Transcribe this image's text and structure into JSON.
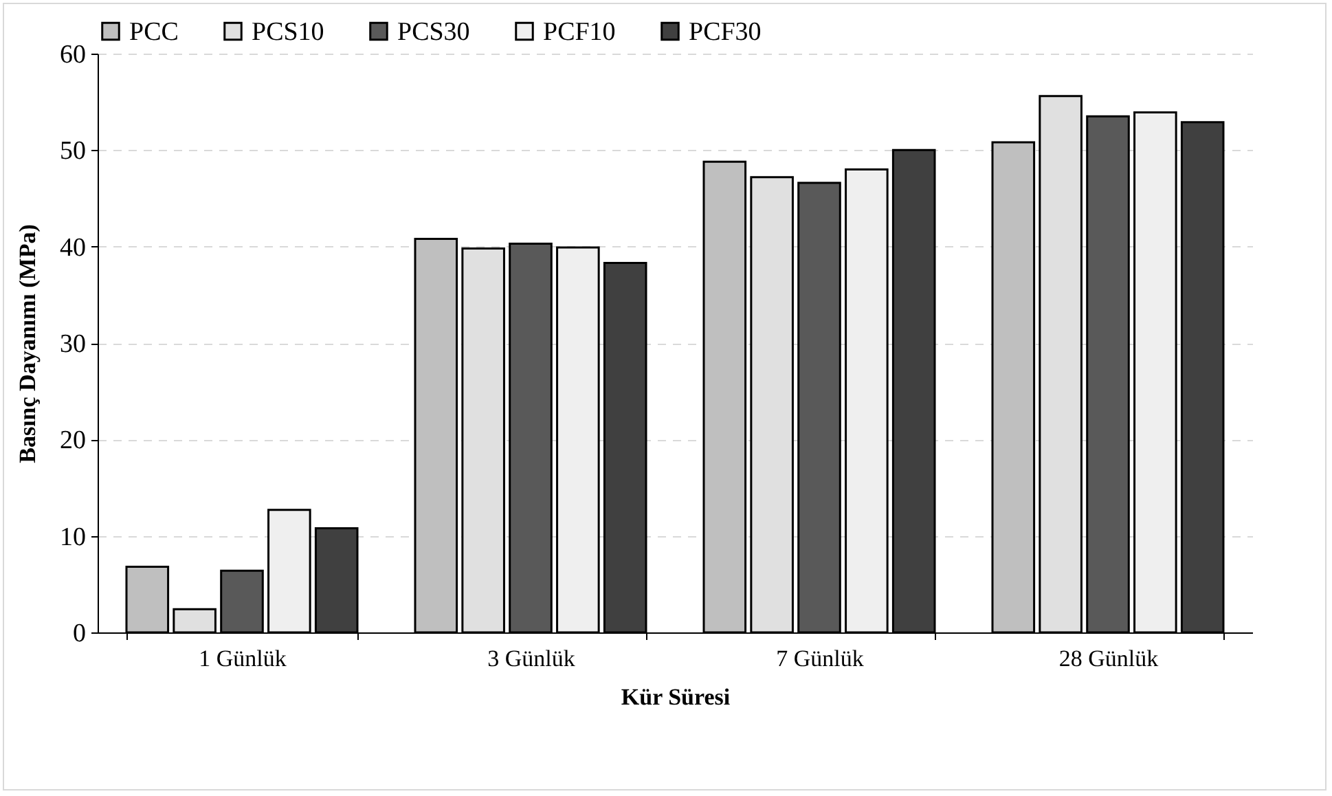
{
  "chart_data": {
    "type": "bar",
    "xlabel": "Kür Süresi",
    "ylabel": "Basınç Dayanımı (MPa)",
    "categories": [
      "1 Günlük",
      "3 Günlük",
      "7 Günlük",
      "28 Günlük"
    ],
    "series": [
      {
        "name": "PCC",
        "color": "#bfbfbf",
        "values": [
          6.8,
          40.8,
          48.8,
          50.8
        ]
      },
      {
        "name": "PCS10",
        "color": "#e0e0e0",
        "values": [
          2.4,
          39.8,
          47.2,
          55.6
        ]
      },
      {
        "name": "PCS30",
        "color": "#595959",
        "values": [
          6.4,
          40.3,
          46.6,
          53.5
        ]
      },
      {
        "name": "PCF10",
        "color": "#efefef",
        "values": [
          12.7,
          39.9,
          48.0,
          53.9
        ]
      },
      {
        "name": "PCF30",
        "color": "#404040",
        "values": [
          10.8,
          38.3,
          50.0,
          52.9
        ]
      }
    ],
    "ylim": [
      0,
      60
    ],
    "yticks": [
      0,
      10,
      20,
      30,
      40,
      50,
      60
    ],
    "grid": "y",
    "legend": "top"
  }
}
